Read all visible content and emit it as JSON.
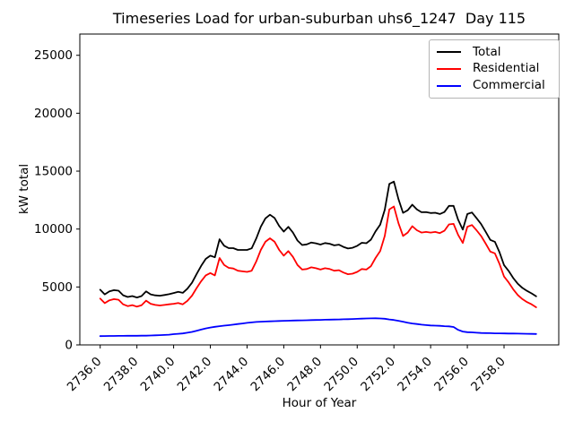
{
  "chart_data": {
    "type": "line",
    "title": "Timeseries Load for urban-suburban uhs6_1247  Day 115",
    "xlabel": "Hour of Year",
    "ylabel": "kW total",
    "xlim": [
      2734.89,
      2760.98
    ],
    "ylim": [
      0,
      26834
    ],
    "grid": false,
    "legend_position": "upper-right",
    "xticks": [
      2736,
      2738,
      2740,
      2742,
      2744,
      2746,
      2748,
      2750,
      2752,
      2754,
      2756,
      2758
    ],
    "xtick_labels": [
      "2736.0",
      "2738.0",
      "2740.0",
      "2742.0",
      "2744.0",
      "2746.0",
      "2748.0",
      "2750.0",
      "2752.0",
      "2754.0",
      "2756.0",
      "2758.0"
    ],
    "yticks": [
      0,
      5000,
      10000,
      15000,
      20000,
      25000
    ],
    "ytick_labels": [
      "0",
      "5000",
      "10000",
      "15000",
      "20000",
      "25000"
    ],
    "x": [
      2736.0,
      2736.25,
      2736.5,
      2736.75,
      2737.0,
      2737.25,
      2737.5,
      2737.75,
      2738.0,
      2738.25,
      2738.5,
      2738.75,
      2739.0,
      2739.25,
      2739.5,
      2739.75,
      2740.0,
      2740.25,
      2740.5,
      2740.75,
      2741.0,
      2741.25,
      2741.5,
      2741.75,
      2742.0,
      2742.25,
      2742.5,
      2742.75,
      2743.0,
      2743.25,
      2743.5,
      2743.75,
      2744.0,
      2744.25,
      2744.5,
      2744.75,
      2745.0,
      2745.25,
      2745.5,
      2745.75,
      2746.0,
      2746.25,
      2746.5,
      2746.75,
      2747.0,
      2747.25,
      2747.5,
      2747.75,
      2748.0,
      2748.25,
      2748.5,
      2748.75,
      2749.0,
      2749.25,
      2749.5,
      2749.75,
      2750.0,
      2750.25,
      2750.5,
      2750.75,
      2751.0,
      2751.25,
      2751.5,
      2751.75,
      2752.0,
      2752.25,
      2752.5,
      2752.75,
      2753.0,
      2753.25,
      2753.5,
      2753.75,
      2754.0,
      2754.25,
      2754.5,
      2754.75,
      2755.0,
      2755.25,
      2755.5,
      2755.75,
      2756.0,
      2756.25,
      2756.5,
      2756.75,
      2757.0,
      2757.25,
      2757.5,
      2757.75,
      2758.0,
      2758.25,
      2758.5,
      2758.75,
      2759.0,
      2759.25,
      2759.5,
      2759.75
    ],
    "series": [
      {
        "name": "Total",
        "color": "#000000",
        "values": [
          4760,
          4365,
          4620,
          4725,
          4680,
          4282,
          4135,
          4218,
          4090,
          4215,
          4620,
          4360,
          4280,
          4245,
          4310,
          4380,
          4480,
          4580,
          4490,
          4850,
          5370,
          6120,
          6820,
          7420,
          7700,
          7560,
          9120,
          8560,
          8350,
          8350,
          8200,
          8200,
          8200,
          8340,
          9180,
          10200,
          10920,
          11235,
          10950,
          10265,
          9780,
          10190,
          9700,
          9010,
          8620,
          8680,
          8840,
          8770,
          8660,
          8790,
          8730,
          8590,
          8650,
          8460,
          8320,
          8385,
          8550,
          8815,
          8780,
          9090,
          9800,
          10380,
          11660,
          13900,
          14100,
          12580,
          11400,
          11620,
          12100,
          11700,
          11450,
          11460,
          11380,
          11410,
          11300,
          11470,
          12000,
          12000,
          10800,
          9950,
          11300,
          11430,
          10950,
          10430,
          9770,
          9060,
          8900,
          8000,
          6890,
          6385,
          5780,
          5275,
          4920,
          4660,
          4450,
          4190
        ]
      },
      {
        "name": "Residential",
        "color": "#ff0000",
        "values": [
          4000,
          3600,
          3850,
          3950,
          3900,
          3500,
          3350,
          3430,
          3300,
          3420,
          3820,
          3550,
          3450,
          3400,
          3450,
          3500,
          3550,
          3620,
          3500,
          3800,
          4250,
          4900,
          5500,
          6000,
          6200,
          6000,
          7500,
          6900,
          6650,
          6600,
          6400,
          6350,
          6300,
          6400,
          7200,
          8200,
          8900,
          9200,
          8900,
          8200,
          7700,
          8100,
          7600,
          6900,
          6500,
          6550,
          6700,
          6620,
          6500,
          6620,
          6550,
          6400,
          6450,
          6250,
          6100,
          6150,
          6300,
          6550,
          6500,
          6800,
          7500,
          8100,
          9400,
          11700,
          11950,
          10500,
          9400,
          9700,
          10250,
          9900,
          9700,
          9750,
          9700,
          9750,
          9650,
          9850,
          10400,
          10450,
          9500,
          8800,
          10200,
          10350,
          9900,
          9400,
          8750,
          8050,
          7900,
          7000,
          5900,
          5400,
          4800,
          4300,
          3950,
          3700,
          3500,
          3250
        ]
      },
      {
        "name": "Commercial",
        "color": "#0000ff",
        "values": [
          760,
          765,
          770,
          775,
          780,
          782,
          785,
          788,
          790,
          795,
          800,
          810,
          830,
          845,
          860,
          880,
          930,
          960,
          990,
          1050,
          1120,
          1220,
          1320,
          1420,
          1500,
          1560,
          1620,
          1660,
          1700,
          1750,
          1800,
          1850,
          1900,
          1940,
          1980,
          2000,
          2020,
          2035,
          2050,
          2065,
          2080,
          2090,
          2100,
          2110,
          2120,
          2130,
          2140,
          2150,
          2160,
          2170,
          2180,
          2190,
          2200,
          2210,
          2220,
          2235,
          2250,
          2265,
          2280,
          2290,
          2300,
          2280,
          2260,
          2200,
          2150,
          2080,
          2000,
          1920,
          1850,
          1800,
          1750,
          1710,
          1680,
          1660,
          1650,
          1620,
          1600,
          1550,
          1300,
          1150,
          1100,
          1080,
          1050,
          1030,
          1020,
          1010,
          1000,
          1000,
          990,
          985,
          980,
          975,
          970,
          960,
          950,
          940
        ]
      }
    ]
  }
}
